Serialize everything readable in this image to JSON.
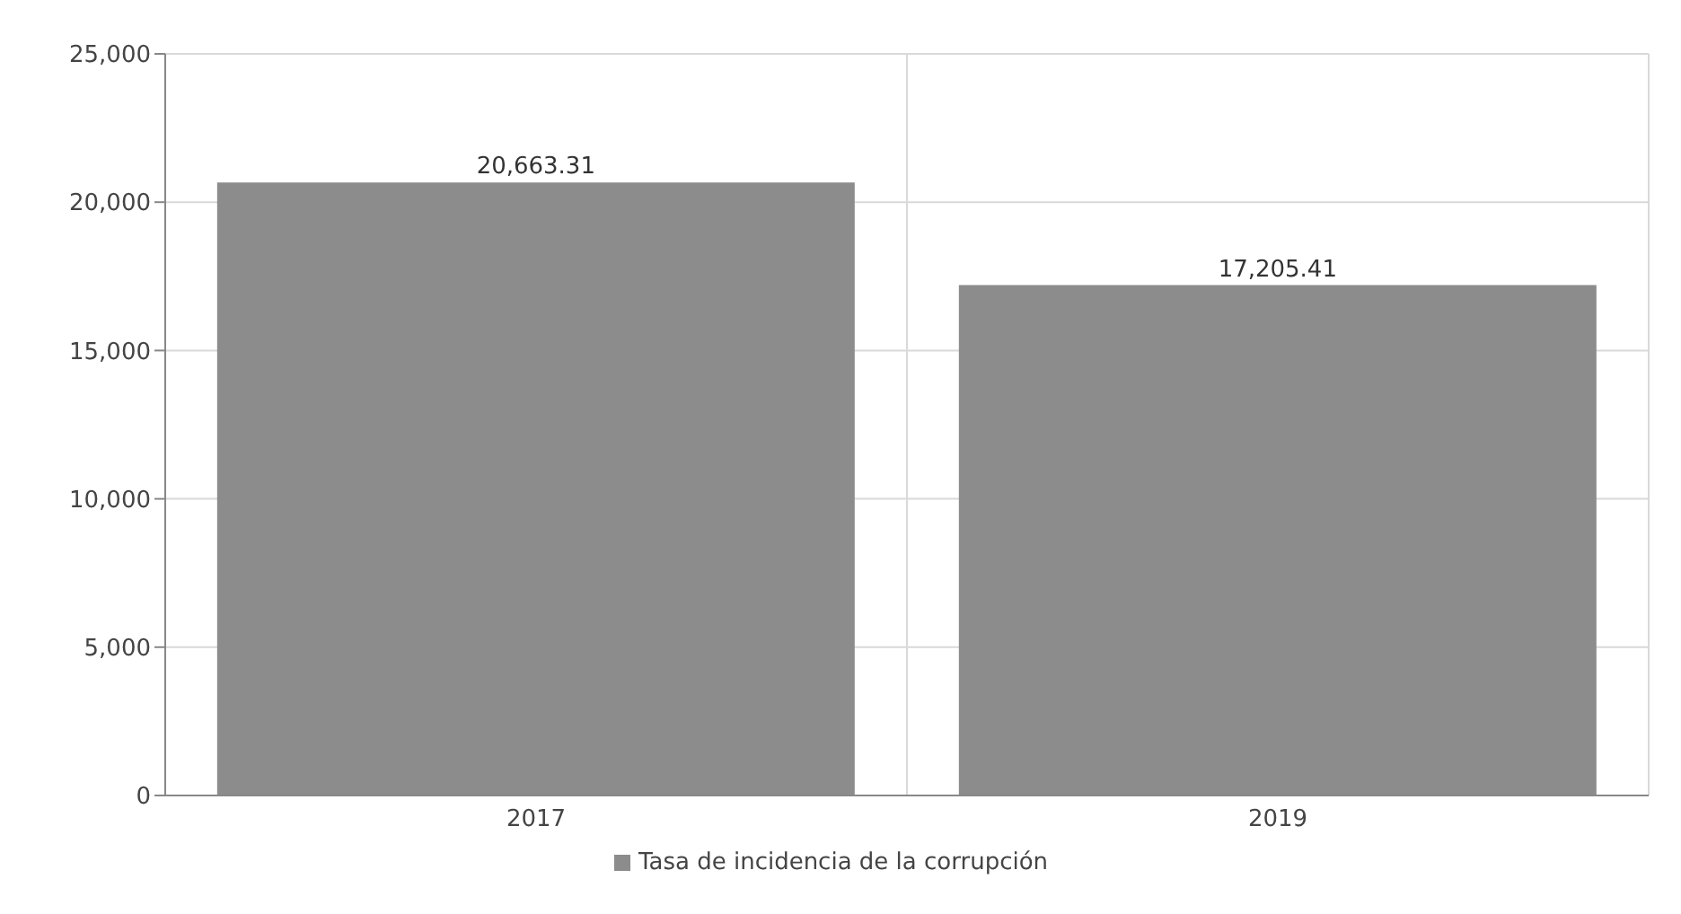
{
  "chart_data": {
    "type": "bar",
    "categories": [
      "2017",
      "2019"
    ],
    "series": [
      {
        "name": "Tasa de incidencia de la corrupción",
        "color": "#8c8c8c",
        "values": [
          20663.31,
          17205.41
        ],
        "value_labels": [
          "20,663.31",
          "17,205.41"
        ]
      }
    ],
    "ylim": [
      0,
      25000
    ],
    "yticks": [
      0,
      {
        "value": 5000,
        "label": "5,000"
      },
      {
        "value": 10000,
        "label": "10,000"
      },
      {
        "value": 15000,
        "label": "15,000"
      },
      {
        "value": 20000,
        "label": "20,000"
      },
      {
        "value": 25000,
        "label": "25,000"
      }
    ],
    "grid": true,
    "legend": "bottom"
  }
}
